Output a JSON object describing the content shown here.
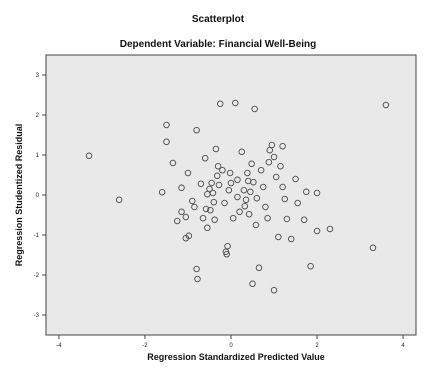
{
  "chart_data": {
    "type": "scatter",
    "title": "Scatterplot",
    "subtitle": "Dependent Variable: Financial Well-Being",
    "xlabel": "Regression Standardized Predicted Value",
    "ylabel": "Regression Studentized Residual",
    "xlim": [
      -4.3,
      4.3
    ],
    "ylim": [
      -3.5,
      3.5
    ],
    "xticks": [
      -4,
      -2,
      0,
      2,
      4
    ],
    "yticks": [
      3,
      2,
      1,
      0,
      -1,
      -2,
      -3
    ],
    "grid": false,
    "legend": "none",
    "colors": {
      "plot_bg": "#e9e9e9",
      "marker_stroke": "#4a4a4a",
      "frame": "#444444"
    },
    "points": [
      [
        -3.3,
        0.98
      ],
      [
        -2.6,
        -0.12
      ],
      [
        -1.6,
        0.07
      ],
      [
        -1.5,
        1.75
      ],
      [
        -1.5,
        1.33
      ],
      [
        -1.35,
        0.8
      ],
      [
        -1.25,
        -0.65
      ],
      [
        -1.15,
        0.18
      ],
      [
        -1.15,
        -0.42
      ],
      [
        -1.05,
        -1.08
      ],
      [
        -1.05,
        -0.55
      ],
      [
        -1.0,
        0.55
      ],
      [
        -0.98,
        -1.02
      ],
      [
        -0.9,
        -0.15
      ],
      [
        -0.85,
        -0.3
      ],
      [
        -0.8,
        1.62
      ],
      [
        -0.8,
        -1.85
      ],
      [
        -0.78,
        -2.1
      ],
      [
        -0.7,
        0.28
      ],
      [
        -0.65,
        -0.58
      ],
      [
        -0.6,
        0.92
      ],
      [
        -0.58,
        -0.35
      ],
      [
        -0.55,
        0.02
      ],
      [
        -0.55,
        -0.82
      ],
      [
        -0.5,
        0.15
      ],
      [
        -0.48,
        -0.38
      ],
      [
        -0.45,
        0.3
      ],
      [
        -0.42,
        0.05
      ],
      [
        -0.4,
        -0.18
      ],
      [
        -0.38,
        -0.62
      ],
      [
        -0.35,
        1.15
      ],
      [
        -0.32,
        0.48
      ],
      [
        -0.3,
        0.72
      ],
      [
        -0.28,
        0.25
      ],
      [
        -0.25,
        2.28
      ],
      [
        -0.2,
        0.62
      ],
      [
        -0.15,
        -0.2
      ],
      [
        -0.12,
        -1.42
      ],
      [
        -0.1,
        -1.48
      ],
      [
        -0.08,
        -1.28
      ],
      [
        -0.05,
        0.12
      ],
      [
        -0.02,
        0.55
      ],
      [
        0.0,
        0.3
      ],
      [
        0.05,
        -0.58
      ],
      [
        0.1,
        2.3
      ],
      [
        0.15,
        -0.05
      ],
      [
        0.15,
        0.38
      ],
      [
        0.2,
        -0.42
      ],
      [
        0.25,
        1.08
      ],
      [
        0.3,
        0.12
      ],
      [
        0.32,
        -0.28
      ],
      [
        0.35,
        -0.12
      ],
      [
        0.38,
        0.55
      ],
      [
        0.4,
        0.35
      ],
      [
        0.42,
        -0.48
      ],
      [
        0.45,
        0.08
      ],
      [
        0.48,
        0.78
      ],
      [
        0.5,
        -2.22
      ],
      [
        0.52,
        0.32
      ],
      [
        0.55,
        2.15
      ],
      [
        0.58,
        -0.75
      ],
      [
        0.6,
        -0.08
      ],
      [
        0.65,
        -1.82
      ],
      [
        0.7,
        0.62
      ],
      [
        0.75,
        0.2
      ],
      [
        0.8,
        -0.3
      ],
      [
        0.85,
        -0.58
      ],
      [
        0.88,
        0.82
      ],
      [
        0.9,
        1.12
      ],
      [
        0.95,
        1.25
      ],
      [
        1.0,
        0.95
      ],
      [
        1.0,
        -2.38
      ],
      [
        1.05,
        0.45
      ],
      [
        1.1,
        -1.05
      ],
      [
        1.15,
        0.72
      ],
      [
        1.2,
        1.22
      ],
      [
        1.2,
        0.2
      ],
      [
        1.25,
        -0.1
      ],
      [
        1.3,
        -0.6
      ],
      [
        1.4,
        -1.1
      ],
      [
        1.5,
        0.4
      ],
      [
        1.55,
        -0.2
      ],
      [
        1.7,
        -0.62
      ],
      [
        1.75,
        0.08
      ],
      [
        1.85,
        -1.78
      ],
      [
        2.0,
        0.05
      ],
      [
        2.0,
        -0.9
      ],
      [
        2.3,
        -0.85
      ],
      [
        3.3,
        -1.32
      ],
      [
        3.6,
        2.25
      ]
    ]
  }
}
